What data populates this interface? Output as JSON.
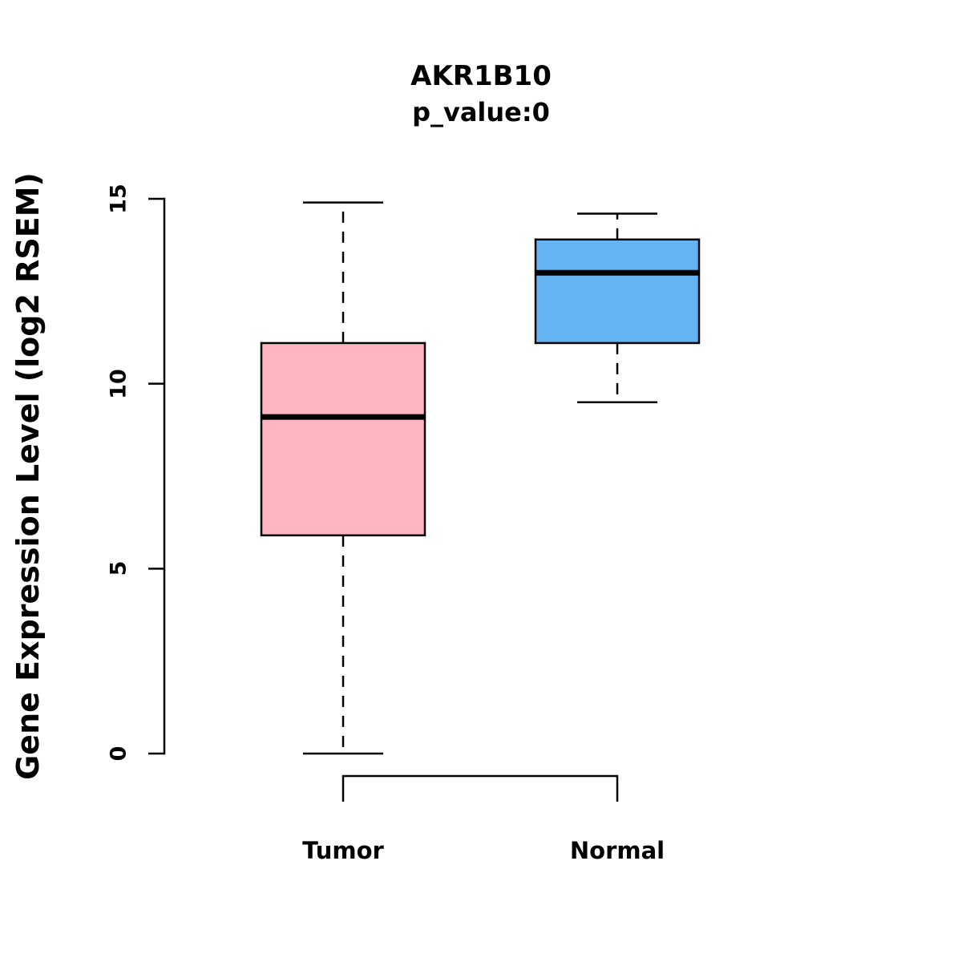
{
  "chart_data": {
    "type": "box",
    "title": "AKR1B10",
    "subtitle": "p_value:0",
    "ylabel": "Gene Expression Level (log2 RSEM)",
    "xlabel": "",
    "categories": [
      "Tumor",
      "Normal"
    ],
    "yticks": [
      "0",
      "5",
      "10",
      "15"
    ],
    "ytick_values": [
      0,
      5,
      10,
      15
    ],
    "ylim": [
      0,
      15
    ],
    "grid": false,
    "legend": "none",
    "series": [
      {
        "name": "Tumor",
        "color": "#FFB6C1",
        "min": 0,
        "q1": 5.9,
        "median": 9.1,
        "q3": 11.1,
        "max": 14.9
      },
      {
        "name": "Normal",
        "color": "#63B4F0",
        "min": 9.5,
        "q1": 11.1,
        "median": 13.0,
        "q3": 13.9,
        "max": 14.6
      }
    ],
    "colors": {
      "box_border": "#000000",
      "median_line": "#000000",
      "whisker": "#000000",
      "axis": "#000000"
    }
  }
}
